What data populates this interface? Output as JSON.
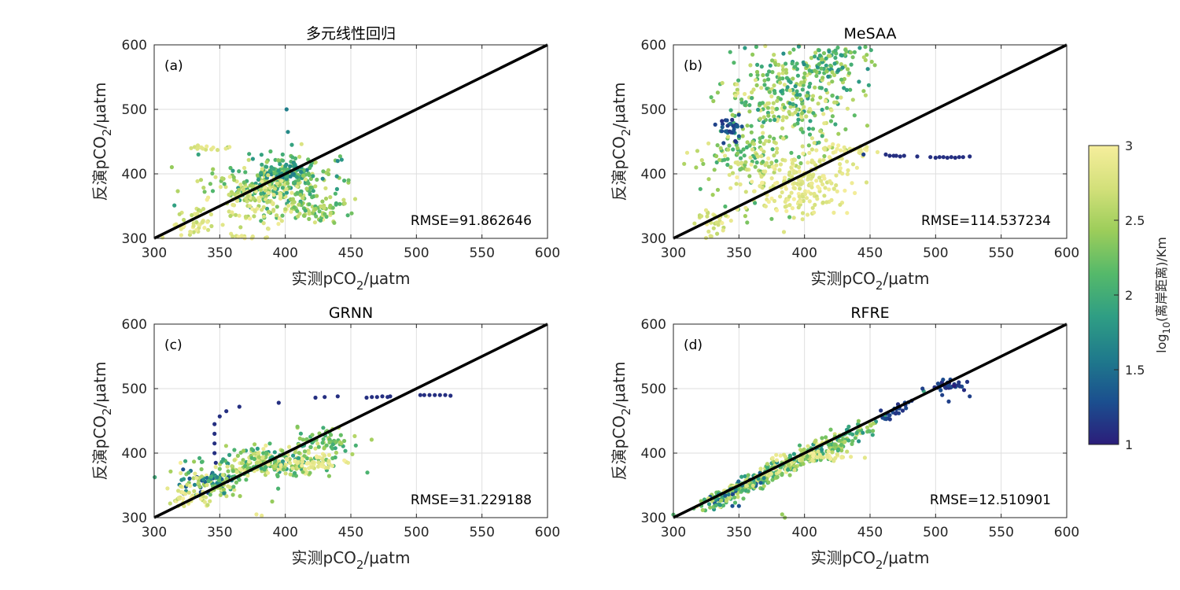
{
  "colormap": [
    "#352a87",
    "#0f5cdd",
    "#1481d6",
    "#06a4ca",
    "#2eb7a4",
    "#87bf77",
    "#d1bb59",
    "#fec832",
    "#f9fb0e"
  ],
  "colormap_display": [
    "#2b1d7a",
    "#1b4f8f",
    "#1f7a8c",
    "#2f9e84",
    "#55b96a",
    "#9ccd5a",
    "#d3e07a",
    "#f6ee9c"
  ],
  "colorbar": {
    "label_prefix": "log",
    "label_sub": "10",
    "label_suffix": "(离岸距离)/Km",
    "range": [
      1,
      3
    ],
    "ticks": [
      "1",
      "1.5",
      "2",
      "2.5",
      "3"
    ]
  },
  "chart_data": [
    {
      "type": "scatter",
      "panel": "(a)",
      "title": "多元线性回归",
      "xlabel_prefix": "实测pCO",
      "xlabel_sub": "2",
      "xlabel_suffix": "/μatm",
      "ylabel_prefix": "反演pCO",
      "ylabel_sub": "2",
      "ylabel_suffix": "/μatm",
      "xlim": [
        300,
        600
      ],
      "ylim": [
        300,
        600
      ],
      "xticks": [
        "300",
        "350",
        "400",
        "450",
        "500",
        "550",
        "600"
      ],
      "yticks": [
        "300",
        "400",
        "500",
        "600"
      ],
      "grid": true,
      "reference_line": "y=x",
      "annotation": "RMSE=91.862646",
      "clusters": [
        {
          "cx": 390,
          "cy": 385,
          "sx": 22,
          "sy": 22,
          "n": 260,
          "c": [
            1.8,
            2.9
          ]
        },
        {
          "cx": 400,
          "cy": 400,
          "sx": 12,
          "sy": 10,
          "n": 90,
          "c": [
            1.6,
            2.4
          ]
        },
        {
          "cx": 375,
          "cy": 355,
          "sx": 20,
          "sy": 18,
          "n": 110,
          "c": [
            2.5,
            3.0
          ]
        },
        {
          "cx": 425,
          "cy": 345,
          "sx": 12,
          "sy": 10,
          "n": 70,
          "c": [
            2.0,
            2.7
          ]
        },
        {
          "cx": 330,
          "cy": 320,
          "sx": 8,
          "sy": 12,
          "n": 40,
          "c": [
            2.6,
            3.0
          ]
        },
        {
          "cx": 340,
          "cy": 440,
          "sx": 8,
          "sy": 2,
          "n": 15,
          "c": [
            2.7,
            3.0
          ]
        },
        {
          "cx": 370,
          "cy": 300,
          "sx": 12,
          "sy": 3,
          "n": 20,
          "c": [
            2.7,
            3.0
          ]
        }
      ],
      "points": [
        [
          401,
          500,
          1.6
        ],
        [
          402,
          465,
          1.7
        ],
        [
          440,
          420,
          1.7
        ],
        [
          443,
          422,
          1.8
        ],
        [
          405,
          445,
          1.9
        ],
        [
          398,
          430,
          2.0
        ]
      ]
    },
    {
      "type": "scatter",
      "panel": "(b)",
      "title": "MeSAA",
      "xlabel_prefix": "实测pCO",
      "xlabel_sub": "2",
      "xlabel_suffix": "/μatm",
      "ylabel_prefix": "反演pCO",
      "ylabel_sub": "2",
      "ylabel_suffix": "/μatm",
      "xlim": [
        300,
        600
      ],
      "ylim": [
        300,
        600
      ],
      "xticks": [
        "300",
        "350",
        "400",
        "450",
        "500",
        "550",
        "600"
      ],
      "yticks": [
        "300",
        "400",
        "500",
        "600"
      ],
      "grid": true,
      "reference_line": "y=x",
      "annotation": "RMSE=114.537234",
      "clusters": [
        {
          "cx": 390,
          "cy": 520,
          "sx": 25,
          "sy": 45,
          "n": 320,
          "c": [
            1.8,
            2.9
          ]
        },
        {
          "cx": 355,
          "cy": 430,
          "sx": 18,
          "sy": 40,
          "n": 150,
          "c": [
            2.0,
            2.9
          ]
        },
        {
          "cx": 395,
          "cy": 385,
          "sx": 20,
          "sy": 25,
          "n": 200,
          "c": [
            2.7,
            3.0
          ]
        },
        {
          "cx": 420,
          "cy": 575,
          "sx": 15,
          "sy": 15,
          "n": 80,
          "c": [
            1.7,
            2.6
          ]
        },
        {
          "cx": 345,
          "cy": 470,
          "sx": 5,
          "sy": 12,
          "n": 30,
          "c": [
            1.1,
            1.5
          ]
        },
        {
          "cx": 330,
          "cy": 330,
          "sx": 8,
          "sy": 15,
          "n": 30,
          "c": [
            2.6,
            3.0
          ]
        },
        {
          "cx": 430,
          "cy": 435,
          "sx": 12,
          "sy": 6,
          "n": 30,
          "c": [
            2.8,
            3.0
          ]
        }
      ],
      "points": [
        [
          462,
          430,
          1.1
        ],
        [
          465,
          428,
          1.1
        ],
        [
          468,
          428,
          1.1
        ],
        [
          470,
          428,
          1.1
        ],
        [
          473,
          427,
          1.1
        ],
        [
          476,
          428,
          1.1
        ],
        [
          486,
          427,
          1.1
        ],
        [
          496,
          426,
          1.1
        ],
        [
          500,
          425,
          1.1
        ],
        [
          503,
          426,
          1.1
        ],
        [
          506,
          426,
          1.1
        ],
        [
          509,
          425,
          1.1
        ],
        [
          512,
          426,
          1.1
        ],
        [
          515,
          425,
          1.1
        ],
        [
          518,
          426,
          1.1
        ],
        [
          521,
          426,
          1.1
        ],
        [
          526,
          427,
          1.1
        ],
        [
          445,
          430,
          1.2
        ]
      ]
    },
    {
      "type": "scatter",
      "panel": "(c)",
      "title": "GRNN",
      "xlabel_prefix": "实测pCO",
      "xlabel_sub": "2",
      "xlabel_suffix": "/μatm",
      "ylabel_prefix": "反演pCO",
      "ylabel_sub": "2",
      "ylabel_suffix": "/μatm",
      "xlim": [
        300,
        600
      ],
      "ylim": [
        300,
        600
      ],
      "xticks": [
        "300",
        "350",
        "400",
        "450",
        "500",
        "550",
        "600"
      ],
      "yticks": [
        "300",
        "400",
        "500",
        "600"
      ],
      "grid": true,
      "reference_line": "y=x",
      "annotation": "RMSE=31.229188",
      "clusters": [
        {
          "cx": 390,
          "cy": 385,
          "sx": 25,
          "sy": 12,
          "n": 260,
          "c": [
            1.8,
            3.0
          ]
        },
        {
          "cx": 345,
          "cy": 355,
          "sx": 15,
          "sy": 10,
          "n": 120,
          "c": [
            1.2,
            2.9
          ]
        },
        {
          "cx": 430,
          "cy": 420,
          "sx": 10,
          "sy": 10,
          "n": 60,
          "c": [
            1.9,
            2.6
          ]
        },
        {
          "cx": 325,
          "cy": 330,
          "sx": 8,
          "sy": 8,
          "n": 40,
          "c": [
            2.6,
            3.0
          ]
        },
        {
          "cx": 420,
          "cy": 385,
          "sx": 15,
          "sy": 5,
          "n": 40,
          "c": [
            2.8,
            3.0
          ]
        }
      ],
      "points": [
        [
          346,
          445,
          1.1
        ],
        [
          346,
          430,
          1.1
        ],
        [
          346,
          415,
          1.1
        ],
        [
          346,
          400,
          1.1
        ],
        [
          347,
          385,
          1.1
        ],
        [
          350,
          457,
          1.1
        ],
        [
          355,
          465,
          1.1
        ],
        [
          365,
          472,
          1.1
        ],
        [
          395,
          478,
          1.1
        ],
        [
          423,
          486,
          1.1
        ],
        [
          430,
          487,
          1.1
        ],
        [
          440,
          488,
          1.1
        ],
        [
          462,
          486,
          1.1
        ],
        [
          466,
          487,
          1.1
        ],
        [
          470,
          487,
          1.1
        ],
        [
          474,
          488,
          1.1
        ],
        [
          478,
          487,
          1.1
        ],
        [
          480,
          488,
          1.1
        ],
        [
          503,
          490,
          1.1
        ],
        [
          506,
          490,
          1.1
        ],
        [
          510,
          490,
          1.1
        ],
        [
          514,
          490,
          1.1
        ],
        [
          518,
          490,
          1.1
        ],
        [
          522,
          490,
          1.1
        ],
        [
          526,
          489,
          1.1
        ],
        [
          378,
          305,
          2.9
        ],
        [
          382,
          303,
          2.9
        ],
        [
          390,
          325,
          2.4
        ]
      ]
    },
    {
      "type": "scatter",
      "panel": "(d)",
      "title": "RFRE",
      "xlabel_prefix": "实测pCO",
      "xlabel_sub": "2",
      "xlabel_suffix": "/μatm",
      "ylabel_prefix": "反演pCO",
      "ylabel_sub": "2",
      "ylabel_suffix": "/μatm",
      "xlim": [
        300,
        600
      ],
      "ylim": [
        300,
        600
      ],
      "xticks": [
        "300",
        "350",
        "400",
        "450",
        "500",
        "550",
        "600"
      ],
      "yticks": [
        "300",
        "400",
        "500",
        "600"
      ],
      "grid": true,
      "reference_line": "y=x",
      "annotation": "RMSE=12.510901",
      "clusters": [
        {
          "cx": 385,
          "cy": 380,
          "sx": 28,
          "sy": 8,
          "n": 320,
          "c": [
            1.8,
            3.0
          ],
          "diag": true
        },
        {
          "cx": 345,
          "cy": 340,
          "sx": 15,
          "sy": 6,
          "n": 90,
          "c": [
            1.2,
            2.8
          ],
          "diag": true
        },
        {
          "cx": 425,
          "cy": 415,
          "sx": 12,
          "sy": 8,
          "n": 70,
          "c": [
            1.7,
            2.7
          ],
          "diag": true
        },
        {
          "cx": 470,
          "cy": 465,
          "sx": 5,
          "sy": 4,
          "n": 25,
          "c": [
            1.1,
            1.3
          ],
          "diag": true
        },
        {
          "cx": 510,
          "cy": 505,
          "sx": 6,
          "sy": 4,
          "n": 40,
          "c": [
            1.0,
            1.3
          ]
        },
        {
          "cx": 415,
          "cy": 395,
          "sx": 15,
          "sy": 3,
          "n": 30,
          "c": [
            2.8,
            3.0
          ]
        }
      ],
      "points": [
        [
          490,
          500,
          1.2
        ],
        [
          505,
          490,
          1.2
        ],
        [
          510,
          480,
          1.2
        ],
        [
          526,
          488,
          1.2
        ],
        [
          345,
          318,
          1.3
        ],
        [
          350,
          318,
          1.3
        ],
        [
          383,
          305,
          2.4
        ],
        [
          385,
          300,
          2.4
        ]
      ]
    }
  ]
}
